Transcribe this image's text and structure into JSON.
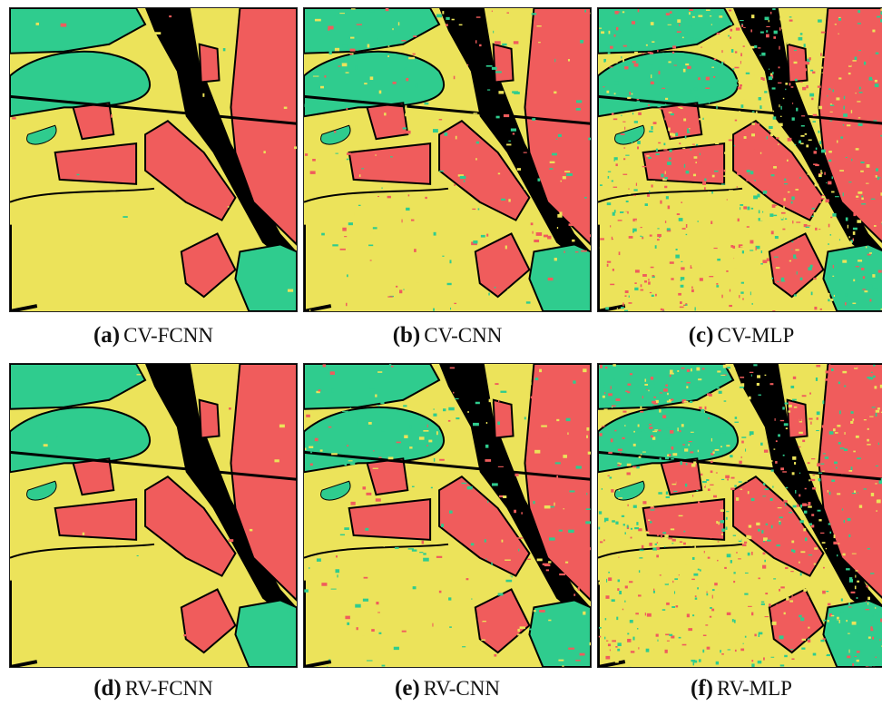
{
  "figure": {
    "panels": [
      {
        "tag": "(a)",
        "name": "CV-FCNN",
        "noise": 0
      },
      {
        "tag": "(b)",
        "name": "CV-CNN",
        "noise": 1
      },
      {
        "tag": "(c)",
        "name": "CV-MLP",
        "noise": 2
      },
      {
        "tag": "(d)",
        "name": "RV-FCNN",
        "noise": 0
      },
      {
        "tag": "(e)",
        "name": "RV-CNN",
        "noise": 1
      },
      {
        "tag": "(f)",
        "name": "RV-MLP",
        "noise": 2
      }
    ],
    "colors": {
      "yellow": "#ece35a",
      "green": "#2fcc8e",
      "red": "#f05c5c",
      "black": "#000000"
    }
  }
}
